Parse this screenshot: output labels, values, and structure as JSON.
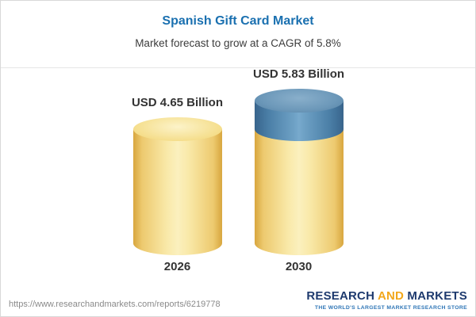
{
  "header": {
    "title": "Spanish Gift Card Market",
    "subtitle": "Market forecast to grow at a CAGR of 5.8%"
  },
  "chart_data": {
    "type": "bar",
    "title": "Spanish Gift Card Market",
    "subtitle": "Market forecast to grow at a CAGR of 5.8%",
    "categories": [
      "2026",
      "2030"
    ],
    "values": [
      4.65,
      5.83
    ],
    "value_labels": [
      "USD 4.65 Billion",
      "USD 5.83 Billion"
    ],
    "unit": "USD Billion",
    "cagr_pct": 5.8,
    "ylim": [
      0,
      5.83
    ],
    "grid": false,
    "legend": "none",
    "colors": {
      "base_segment": "#F3D97E",
      "growth_segment": "#4E81A8"
    }
  },
  "footer": {
    "url": "https://www.researchandmarkets.com/reports/6219778",
    "logo": {
      "word1": "RESEARCH",
      "word2": "AND",
      "word3": "MARKETS",
      "tagline": "THE WORLD'S LARGEST MARKET RESEARCH STORE"
    }
  }
}
